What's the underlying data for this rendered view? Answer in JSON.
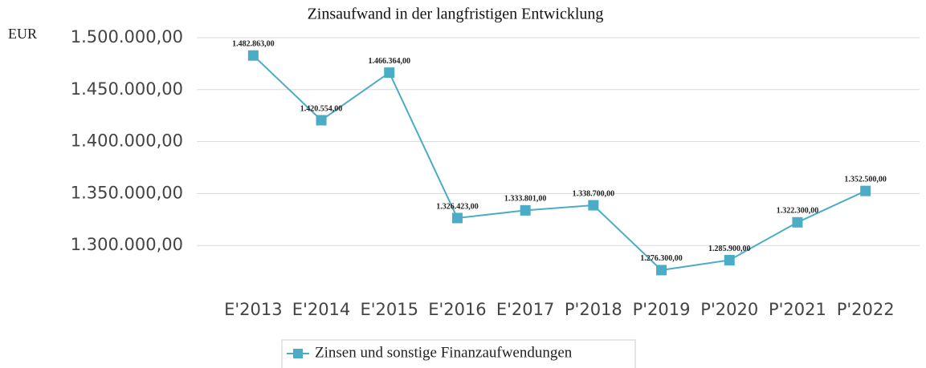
{
  "chart_data": {
    "type": "line",
    "title": "Zinsaufwand in der langfristigen Entwicklung",
    "y_label": "EUR",
    "categories": [
      "E'2013",
      "E'2014",
      "E'2015",
      "E'2016",
      "E'2017",
      "P'2018",
      "P'2019",
      "P'2020",
      "P'2021",
      "P'2022"
    ],
    "series": [
      {
        "name": "Zinsen und sonstige Finanzaufwendungen",
        "color": "#4bacc6",
        "values": [
          1482863,
          1420554,
          1466364,
          1326423,
          1333801,
          1338700,
          1276300,
          1285900,
          1322300,
          1352500
        ],
        "value_labels": [
          "1.482.863,00",
          "1.420.554,00",
          "1.466.364,00",
          "1.326.423,00",
          "1.333.801,00",
          "1.338.700,00",
          "1.276.300,00",
          "1.285.900,00",
          "1.322.300,00",
          "1.352.500,00"
        ]
      }
    ],
    "ylim": [
      1250000,
      1500000
    ],
    "yticks": [
      {
        "value": 1300000,
        "label": "1.300.000,00"
      },
      {
        "value": 1350000,
        "label": "1.350.000,00"
      },
      {
        "value": 1400000,
        "label": "1.400.000,00"
      },
      {
        "value": 1450000,
        "label": "1.450.000,00"
      },
      {
        "value": 1500000,
        "label": "1.500.000,00"
      }
    ],
    "grid": true,
    "legend": "bottom"
  }
}
